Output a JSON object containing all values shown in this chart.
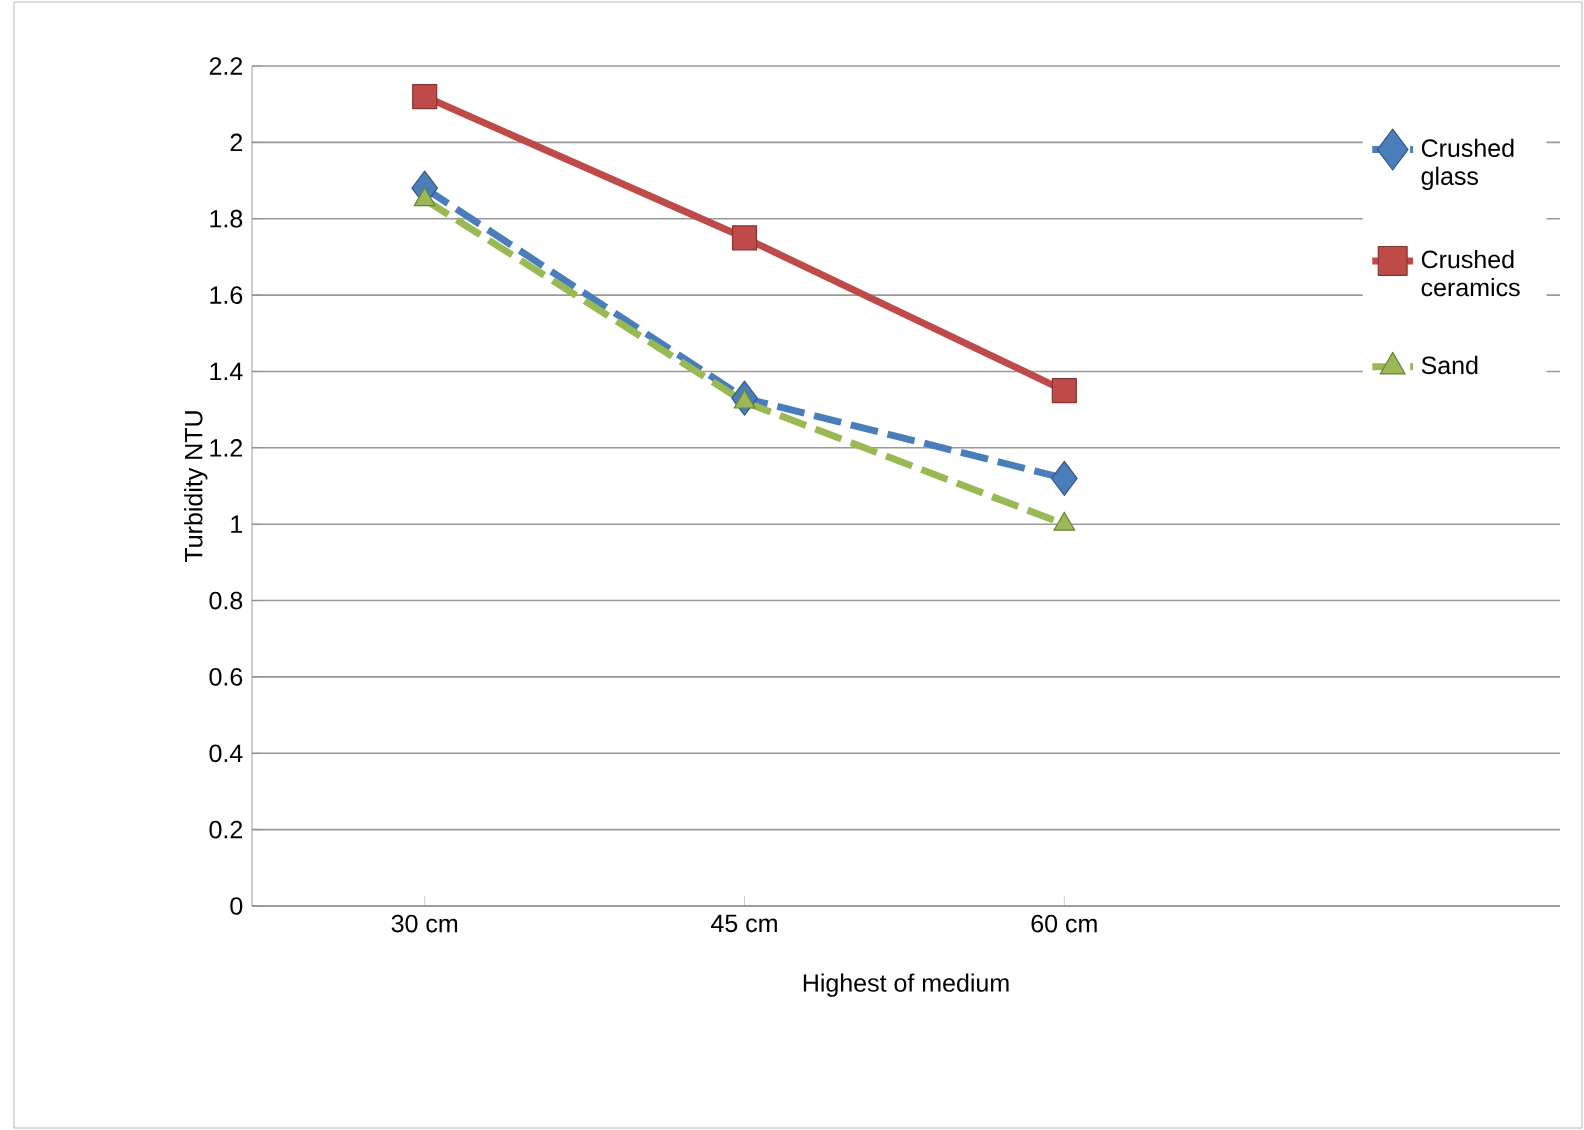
{
  "chart_data": {
    "type": "line",
    "xlabel": "Highest of medium",
    "ylabel": "Turbidity    NTU",
    "categories": [
      "30 cm",
      "45 cm",
      "60 cm"
    ],
    "series": [
      {
        "name": "Crushed glass",
        "color": "#4a7ebb",
        "values": [
          1.88,
          1.33,
          1.12
        ],
        "marker": "diamond",
        "line_style": "dashed"
      },
      {
        "name": "Crushed ceramics",
        "color": "#be4b48",
        "values": [
          2.12,
          1.75,
          1.35
        ],
        "marker": "square",
        "line_style": "solid"
      },
      {
        "name": "Sand",
        "color": "#98b954",
        "values": [
          1.85,
          1.32,
          1.0
        ],
        "marker": "triangle",
        "line_style": "dashed"
      }
    ],
    "ylim": [
      0,
      2.2
    ],
    "yticks": [
      0,
      0.2,
      0.4,
      0.6,
      0.8,
      1,
      1.2,
      1.4,
      1.6,
      1.8,
      2,
      2.2
    ],
    "grid": "y",
    "legend": "right"
  }
}
